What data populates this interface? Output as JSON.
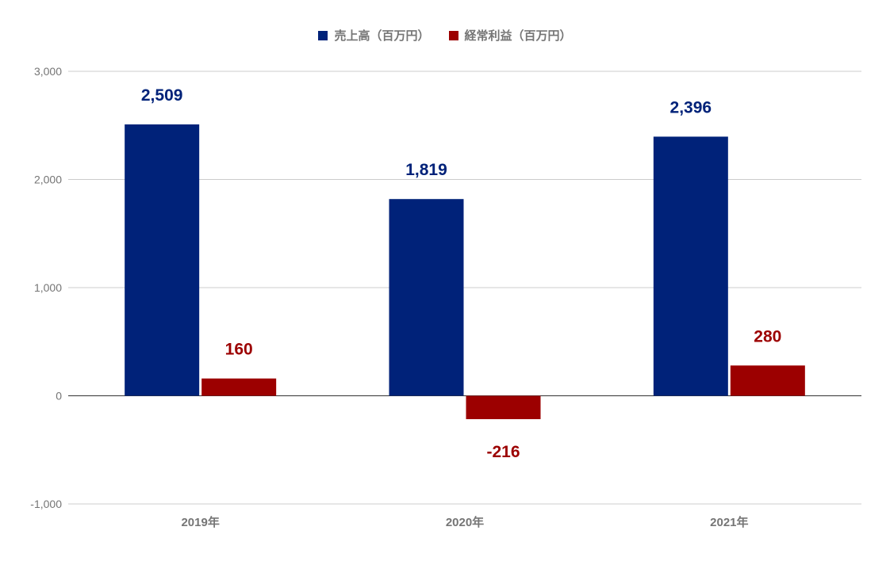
{
  "chart_data": {
    "type": "bar",
    "categories": [
      "2019年",
      "2020年",
      "2021年"
    ],
    "series": [
      {
        "name": "売上高（百万円）",
        "values": [
          2509,
          1819,
          2396
        ],
        "color": "#002279",
        "labels": [
          "2,509",
          "1,819",
          "2,396"
        ]
      },
      {
        "name": "経常利益（百万円）",
        "values": [
          160,
          -216,
          280
        ],
        "color": "#9c0000",
        "labels": [
          "160",
          "-216",
          "280"
        ]
      }
    ],
    "ylim": [
      -1000,
      3000
    ],
    "yticks": [
      {
        "value": 3000,
        "label": "3,000"
      },
      {
        "value": 2000,
        "label": "2,000"
      },
      {
        "value": 1000,
        "label": "1,000"
      },
      {
        "value": 0,
        "label": "0"
      },
      {
        "value": -1000,
        "label": "-1,000"
      }
    ],
    "grid": true,
    "legend_position": "top-center",
    "title": "",
    "xlabel": "",
    "ylabel": ""
  }
}
